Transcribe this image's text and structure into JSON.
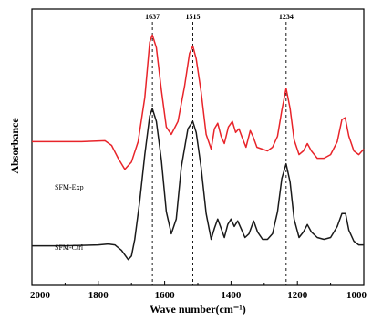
{
  "chart_data": {
    "type": "line",
    "xlabel": "Wave number(cm⁻¹)",
    "ylabel": "Absorbance",
    "xlim": [
      2000,
      1000
    ],
    "x_ticks": [
      2000,
      1800,
      1600,
      1400,
      1200,
      1000
    ],
    "x_tick_labels": [
      "2000",
      "1800",
      "1600",
      "1400",
      "1200",
      "1000"
    ],
    "y_ticks": [],
    "grid": false,
    "legend": "none",
    "annotations": [
      {
        "text": "1637",
        "x": 1637
      },
      {
        "text": "1515",
        "x": 1515
      },
      {
        "text": "1234",
        "x": 1234
      }
    ],
    "series": [
      {
        "name": "SFM-Exp",
        "color": "#e8242a",
        "points": [
          [
            2000,
            5.8
          ],
          [
            1920,
            5.8
          ],
          [
            1850,
            5.8
          ],
          [
            1780,
            5.85
          ],
          [
            1760,
            5.6
          ],
          [
            1740,
            4.9
          ],
          [
            1720,
            4.3
          ],
          [
            1700,
            4.7
          ],
          [
            1680,
            5.8
          ],
          [
            1660,
            8.2
          ],
          [
            1645,
            11.2
          ],
          [
            1637,
            11.6
          ],
          [
            1625,
            10.9
          ],
          [
            1610,
            8.6
          ],
          [
            1595,
            6.6
          ],
          [
            1580,
            6.2
          ],
          [
            1560,
            6.9
          ],
          [
            1540,
            8.8
          ],
          [
            1525,
            10.6
          ],
          [
            1515,
            11.0
          ],
          [
            1505,
            10.3
          ],
          [
            1490,
            8.5
          ],
          [
            1475,
            6.2
          ],
          [
            1460,
            5.4
          ],
          [
            1450,
            6.5
          ],
          [
            1440,
            6.8
          ],
          [
            1430,
            6.1
          ],
          [
            1420,
            5.7
          ],
          [
            1408,
            6.6
          ],
          [
            1396,
            6.9
          ],
          [
            1386,
            6.3
          ],
          [
            1376,
            6.5
          ],
          [
            1366,
            6.0
          ],
          [
            1355,
            5.5
          ],
          [
            1342,
            6.4
          ],
          [
            1334,
            6.1
          ],
          [
            1322,
            5.5
          ],
          [
            1306,
            5.4
          ],
          [
            1290,
            5.3
          ],
          [
            1275,
            5.5
          ],
          [
            1260,
            6.1
          ],
          [
            1247,
            7.5
          ],
          [
            1234,
            8.7
          ],
          [
            1222,
            7.6
          ],
          [
            1210,
            5.9
          ],
          [
            1195,
            5.1
          ],
          [
            1182,
            5.3
          ],
          [
            1170,
            5.7
          ],
          [
            1158,
            5.3
          ],
          [
            1140,
            4.9
          ],
          [
            1120,
            4.9
          ],
          [
            1100,
            5.1
          ],
          [
            1080,
            5.8
          ],
          [
            1066,
            7.0
          ],
          [
            1056,
            7.1
          ],
          [
            1045,
            6.1
          ],
          [
            1030,
            5.3
          ],
          [
            1015,
            5.1
          ],
          [
            1000,
            5.4
          ]
        ]
      },
      {
        "name": "SFM-Ctrl",
        "color": "#1a1a1a",
        "points": [
          [
            2000,
            0.15
          ],
          [
            1900,
            0.15
          ],
          [
            1800,
            0.2
          ],
          [
            1770,
            0.25
          ],
          [
            1750,
            0.2
          ],
          [
            1730,
            -0.1
          ],
          [
            1710,
            -0.6
          ],
          [
            1700,
            -0.4
          ],
          [
            1690,
            0.5
          ],
          [
            1675,
            2.6
          ],
          [
            1660,
            5.1
          ],
          [
            1645,
            7.2
          ],
          [
            1637,
            7.6
          ],
          [
            1625,
            6.9
          ],
          [
            1610,
            4.8
          ],
          [
            1595,
            2.0
          ],
          [
            1580,
            0.8
          ],
          [
            1565,
            1.6
          ],
          [
            1550,
            4.4
          ],
          [
            1530,
            6.5
          ],
          [
            1515,
            6.9
          ],
          [
            1505,
            6.3
          ],
          [
            1490,
            4.4
          ],
          [
            1475,
            1.9
          ],
          [
            1460,
            0.5
          ],
          [
            1450,
            1.1
          ],
          [
            1440,
            1.6
          ],
          [
            1430,
            1.1
          ],
          [
            1420,
            0.6
          ],
          [
            1410,
            1.3
          ],
          [
            1400,
            1.6
          ],
          [
            1390,
            1.2
          ],
          [
            1380,
            1.5
          ],
          [
            1370,
            1.1
          ],
          [
            1358,
            0.6
          ],
          [
            1346,
            0.8
          ],
          [
            1332,
            1.5
          ],
          [
            1320,
            0.9
          ],
          [
            1305,
            0.5
          ],
          [
            1290,
            0.5
          ],
          [
            1275,
            0.8
          ],
          [
            1260,
            2.0
          ],
          [
            1247,
            3.8
          ],
          [
            1234,
            4.6
          ],
          [
            1222,
            3.6
          ],
          [
            1210,
            1.6
          ],
          [
            1195,
            0.6
          ],
          [
            1182,
            0.9
          ],
          [
            1170,
            1.3
          ],
          [
            1158,
            0.9
          ],
          [
            1140,
            0.6
          ],
          [
            1120,
            0.5
          ],
          [
            1100,
            0.6
          ],
          [
            1080,
            1.2
          ],
          [
            1066,
            1.9
          ],
          [
            1055,
            1.9
          ],
          [
            1045,
            1.0
          ],
          [
            1030,
            0.4
          ],
          [
            1015,
            0.2
          ],
          [
            1000,
            0.2
          ]
        ]
      }
    ]
  }
}
